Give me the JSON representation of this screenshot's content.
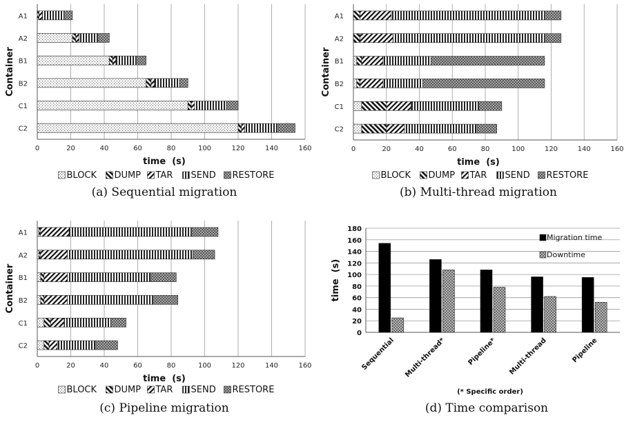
{
  "chart_data": [
    {
      "type": "bar",
      "orientation": "horizontal",
      "stacked": true,
      "caption": "(a) Sequential migration",
      "xlabel": "time (s)",
      "ylabel": "Container",
      "xlim": [
        0,
        160
      ],
      "xticks": [
        0,
        20,
        40,
        60,
        80,
        100,
        120,
        140,
        160
      ],
      "grid": "vertical",
      "legend_position": "bottom",
      "categories": [
        "A1",
        "A2",
        "B1",
        "B2",
        "C1",
        "C2"
      ],
      "series": [
        {
          "name": "BLOCK",
          "values": [
            0,
            21,
            43,
            65,
            90,
            120
          ]
        },
        {
          "name": "DUMP",
          "values": [
            1,
            2,
            2,
            3,
            2,
            2
          ]
        },
        {
          "name": "TAR",
          "values": [
            2,
            2,
            2,
            2,
            2,
            2
          ]
        },
        {
          "name": "SEND",
          "values": [
            13,
            11,
            12,
            15,
            19,
            20
          ]
        },
        {
          "name": "RESTORE",
          "values": [
            5,
            7,
            6,
            5,
            7,
            10
          ]
        }
      ]
    },
    {
      "type": "bar",
      "orientation": "horizontal",
      "stacked": true,
      "caption": "(b) Multi-thread migration",
      "xlabel": "time (s)",
      "ylabel": "Container",
      "xlim": [
        0,
        160
      ],
      "xticks": [
        0,
        20,
        40,
        60,
        80,
        100,
        120,
        140,
        160
      ],
      "grid": "vertical",
      "legend_position": "bottom",
      "categories": [
        "A1",
        "A2",
        "B1",
        "B2",
        "C1",
        "C2"
      ],
      "series": [
        {
          "name": "BLOCK",
          "values": [
            0,
            0,
            2,
            2,
            5,
            5
          ]
        },
        {
          "name": "DUMP",
          "values": [
            4,
            4,
            3,
            2,
            15,
            15
          ]
        },
        {
          "name": "TAR",
          "values": [
            19,
            20,
            13,
            14,
            15,
            11
          ]
        },
        {
          "name": "SEND",
          "values": [
            93,
            92,
            29,
            24,
            41,
            44
          ]
        },
        {
          "name": "RESTORE",
          "values": [
            10,
            10,
            69,
            74,
            14,
            12
          ]
        }
      ]
    },
    {
      "type": "bar",
      "orientation": "horizontal",
      "stacked": true,
      "caption": "(c) Pipeline migration",
      "xlabel": "time (s)",
      "ylabel": "Container",
      "xlim": [
        0,
        160
      ],
      "xticks": [
        0,
        20,
        40,
        60,
        80,
        100,
        120,
        140,
        160
      ],
      "grid": "vertical",
      "legend_position": "bottom",
      "categories": [
        "A1",
        "A2",
        "B1",
        "B2",
        "C1",
        "C2"
      ],
      "series": [
        {
          "name": "BLOCK",
          "values": [
            1,
            1,
            2,
            2,
            4,
            4
          ]
        },
        {
          "name": "DUMP",
          "values": [
            1,
            1,
            2,
            2,
            4,
            3
          ]
        },
        {
          "name": "TAR",
          "values": [
            17,
            16,
            14,
            14,
            8,
            5
          ]
        },
        {
          "name": "SEND",
          "values": [
            73,
            75,
            50,
            51,
            28,
            23
          ]
        },
        {
          "name": "RESTORE",
          "values": [
            16,
            13,
            15,
            15,
            9,
            13
          ]
        }
      ]
    },
    {
      "type": "bar",
      "caption": "(d) Time comparison",
      "xlabel": "",
      "ylabel": "time (s)",
      "ylim": [
        0,
        180
      ],
      "yticks": [
        0,
        20,
        40,
        60,
        80,
        100,
        120,
        140,
        160,
        180
      ],
      "grid": "horizontal",
      "legend_position": "top-right",
      "note": "(* Specific order)",
      "categories": [
        "Sequential",
        "Multi-thread*",
        "Pipeline*",
        "Multi-thread",
        "Pipeline"
      ],
      "series": [
        {
          "name": "Migration time",
          "values": [
            154,
            126,
            108,
            96,
            95
          ]
        },
        {
          "name": "Downtime",
          "values": [
            25,
            108,
            78,
            62,
            52
          ]
        }
      ]
    }
  ],
  "axis_title_x": "time  (s)",
  "axis_title_y": "Container",
  "axis_title_y_d": "time  (s)",
  "colors": {
    "ink": "#111111",
    "grid": "#9a9a9a",
    "stroke": "#222222"
  }
}
